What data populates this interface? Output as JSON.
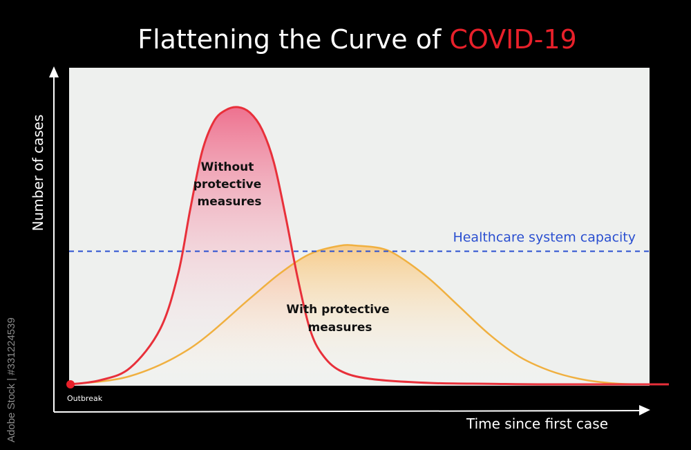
{
  "title": {
    "text_main": "Flattening the Curve of ",
    "text_highlight": "COVID-19"
  },
  "watermark": "Adobe Stock | #331224539",
  "colors": {
    "background": "#000000",
    "plot_area": "#eef0ee",
    "title": "#ffffff",
    "title_highlight": "#e8202a",
    "without_line": "#e8303a",
    "without_fill_top": "#ee5b7e",
    "with_line": "#f0b040",
    "with_fill_top": "#f8c880",
    "capacity_line": "#2a4fd0",
    "outbreak_dot": "#e8202a"
  },
  "chart_data": {
    "type": "area",
    "title": "Flattening the Curve of COVID-19",
    "xlabel": "Time since first case",
    "ylabel": "Number of cases",
    "ticks_shown": false,
    "grid": false,
    "xlim": [
      0,
      100
    ],
    "ylim": [
      0,
      100
    ],
    "series": [
      {
        "name": "Without protective measures",
        "x": [
          0,
          5,
          10,
          15,
          18,
          20,
          22,
          24,
          26,
          28,
          30,
          32,
          34,
          36,
          38,
          40,
          42,
          45,
          50,
          60,
          70,
          80,
          100
        ],
        "values": [
          0,
          1.5,
          6,
          20,
          40,
          63,
          84,
          95,
          99,
          100,
          98,
          92,
          80,
          60,
          38,
          20,
          11,
          5,
          2,
          0.5,
          0.2,
          0,
          0
        ]
      },
      {
        "name": "With protective measures",
        "x": [
          0,
          10,
          20,
          30,
          35,
          40,
          45,
          48,
          52,
          55,
          60,
          65,
          70,
          75,
          80,
          85,
          90,
          95,
          100
        ],
        "values": [
          0,
          3,
          13,
          31,
          40,
          47,
          50,
          50,
          49,
          46,
          38,
          28,
          18,
          10,
          5,
          2,
          0.5,
          0,
          0
        ]
      }
    ],
    "reference_line": {
      "label": "Healthcare system capacity",
      "y": 48
    },
    "annotations": {
      "without": [
        "Without",
        "protective",
        "measures"
      ],
      "with": [
        "With protective",
        "measures"
      ],
      "origin": "Outbreak"
    }
  }
}
